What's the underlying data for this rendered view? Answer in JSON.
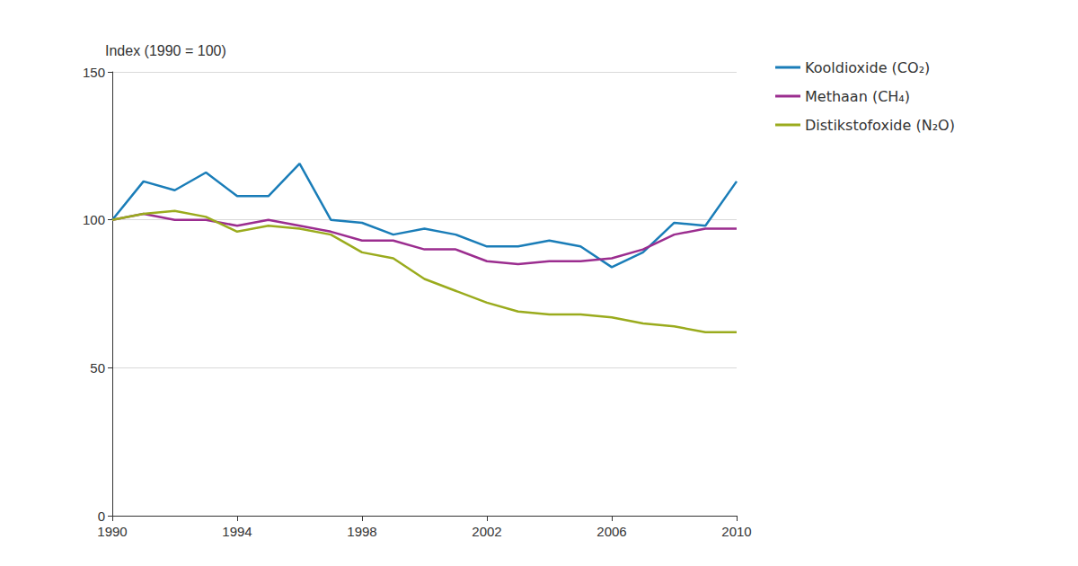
{
  "chart_data": {
    "type": "line",
    "y_label": "Index (1990 = 100)",
    "x": [
      1990,
      1991,
      1992,
      1993,
      1994,
      1995,
      1996,
      1997,
      1998,
      1999,
      2000,
      2001,
      2002,
      2003,
      2004,
      2005,
      2006,
      2007,
      2008,
      2009,
      2010
    ],
    "series": [
      {
        "name": "Kooldioxide (CO₂)",
        "color": "#1a7db8",
        "values": [
          100,
          113,
          110,
          116,
          108,
          108,
          119,
          100,
          99,
          95,
          97,
          95,
          91,
          91,
          93,
          91,
          84,
          89,
          99,
          98,
          113
        ]
      },
      {
        "name": "Methaan (CH₄)",
        "color": "#9b2d8f",
        "values": [
          100,
          102,
          100,
          100,
          98,
          100,
          98,
          96,
          93,
          93,
          90,
          90,
          86,
          85,
          86,
          86,
          87,
          90,
          95,
          97,
          97
        ]
      },
      {
        "name": "Distikstofoxide (N₂O)",
        "color": "#9aab1d",
        "values": [
          100,
          102,
          103,
          101,
          96,
          98,
          97,
          95,
          89,
          87,
          80,
          76,
          72,
          69,
          68,
          68,
          67,
          65,
          64,
          62,
          62
        ]
      }
    ],
    "xlim": [
      1990,
      2010
    ],
    "xticks": [
      1990,
      1994,
      1998,
      2002,
      2006,
      2010
    ],
    "ylim": [
      0,
      150
    ],
    "yticks": [
      0,
      50,
      100,
      150
    ],
    "grid": true,
    "legend": "top-right"
  }
}
